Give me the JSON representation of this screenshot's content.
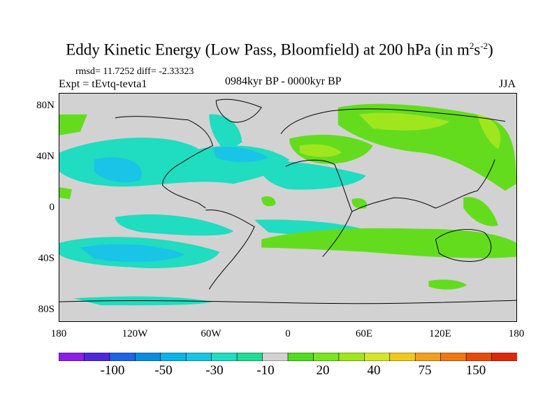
{
  "title": {
    "main": "Eddy Kinetic Energy (Low Pass, Bloomfield) at 200 hPa (in m",
    "sup1": "2",
    "mid": "s",
    "sup2": "-2",
    "end": ")"
  },
  "stats": "rmsd= 11.7252  diff= -2.33323",
  "experiment": "Expt = tEvtq-tevta1",
  "period": "0984kyr BP - 0000kyr BP",
  "season": "JJA",
  "lat_ticks": [
    "80N",
    "40N",
    "0",
    "40S",
    "80S"
  ],
  "lon_ticks": [
    "180",
    "120W",
    "60W",
    "0",
    "60E",
    "120E",
    "180"
  ],
  "colors": {
    "background": "#d2d2d2",
    "neg_light": "#20dcc0",
    "neg_mid": "#19c4e6",
    "neg_dark": "#0aa0dc",
    "pos_light": "#64dc1e",
    "pos_mid": "#a0e61e",
    "coast": "#000000"
  },
  "colorbar": {
    "colors": [
      "#8c1ee6",
      "#5028dc",
      "#1e64e6",
      "#0a8cdc",
      "#0ab4e6",
      "#19c4e6",
      "#20dcc0",
      "#20dc96",
      "#d2d2d2",
      "#50dc1e",
      "#78e61e",
      "#a0e61e",
      "#d2e628",
      "#f0c81e",
      "#f0a01e",
      "#f07814",
      "#e64b0a",
      "#dc280a"
    ],
    "labels": [
      "-100",
      "-50",
      "-30",
      "-10",
      "20",
      "40",
      "75",
      "150"
    ]
  }
}
